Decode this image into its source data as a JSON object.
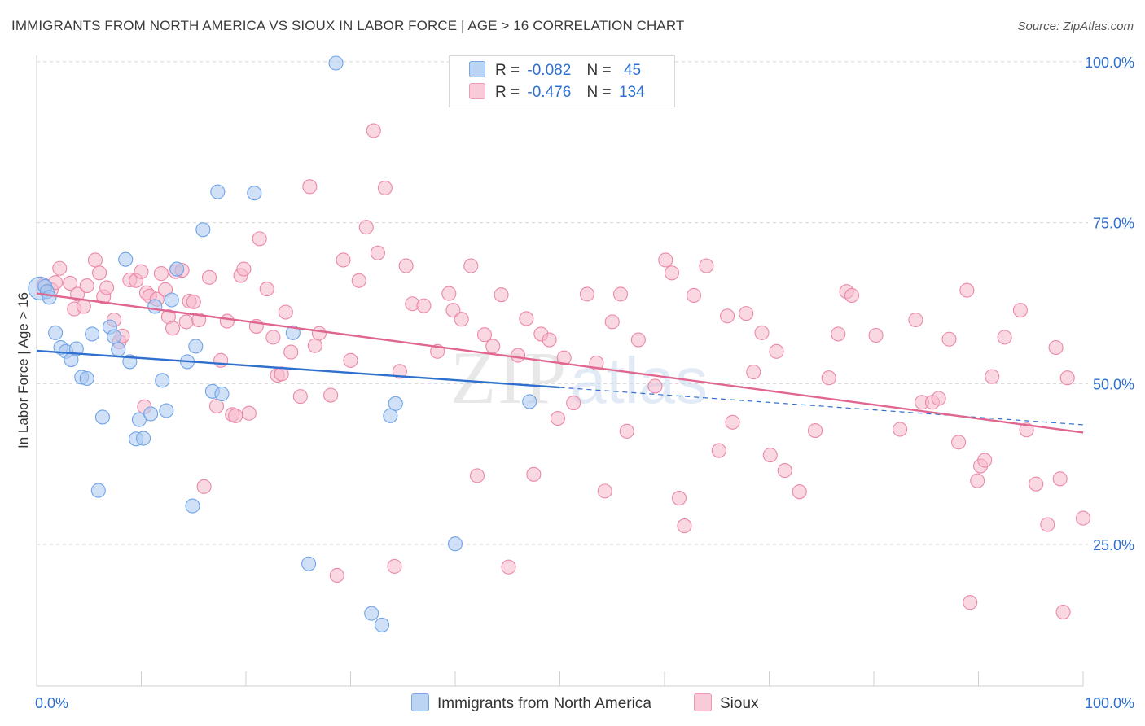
{
  "header": {
    "title": "IMMIGRANTS FROM NORTH AMERICA VS SIOUX IN LABOR FORCE | AGE > 16 CORRELATION CHART",
    "source": "Source: ZipAtlas.com"
  },
  "watermark": {
    "zip": "ZIP",
    "atlas": "atlas"
  },
  "legend": {
    "rows": [
      {
        "r_label": "R =",
        "r_value": "-0.082",
        "n_label": "N =",
        "n_value": "45",
        "color": "#aac8f0"
      },
      {
        "r_label": "R =",
        "r_value": "-0.476",
        "n_label": "N =",
        "n_value": "134",
        "color": "#f5b8cb"
      }
    ]
  },
  "bottom_legend": [
    {
      "label": "Immigrants from North America",
      "color": "#aac8f0"
    },
    {
      "label": "Sioux",
      "color": "#f5b8cb"
    }
  ],
  "chart_data": {
    "type": "scatter",
    "ylabel": "In Labor Force | Age > 16",
    "xlabel": "",
    "xlim": [
      0,
      100
    ],
    "ylim": [
      3,
      101
    ],
    "x_tick_labels": [
      {
        "value": 0,
        "label": "0.0%"
      },
      {
        "value": 100,
        "label": "100.0%"
      }
    ],
    "y_tick_labels": [
      {
        "value": 100,
        "label": "100.0%"
      },
      {
        "value": 75,
        "label": "75.0%"
      },
      {
        "value": 50,
        "label": "50.0%"
      },
      {
        "value": 25,
        "label": "25.0%"
      }
    ],
    "grid": "horizontal dashed",
    "series": [
      {
        "name": "Immigrants from North America",
        "color": "#6fa4e8",
        "fill": "#aac8f0",
        "trend": {
          "x0": 0,
          "y0": 55.1,
          "x1": 50,
          "y1": 49.4,
          "dashed_to_x": 100,
          "dashed_to_y": 43.6,
          "color": "#2f6fce"
        },
        "points": [
          [
            0.3,
            64.8
          ],
          [
            0.8,
            65.1
          ],
          [
            1.0,
            64.3
          ],
          [
            1.2,
            63.4
          ],
          [
            1.8,
            57.9
          ],
          [
            2.3,
            55.6
          ],
          [
            2.8,
            55.0
          ],
          [
            3.3,
            53.7
          ],
          [
            3.8,
            55.4
          ],
          [
            4.3,
            51.0
          ],
          [
            4.8,
            50.8
          ],
          [
            5.3,
            57.7
          ],
          [
            6.3,
            44.8
          ],
          [
            5.9,
            33.4
          ],
          [
            7.0,
            58.8
          ],
          [
            7.4,
            57.3
          ],
          [
            7.8,
            55.3
          ],
          [
            8.5,
            69.3
          ],
          [
            8.9,
            53.4
          ],
          [
            9.5,
            41.4
          ],
          [
            9.8,
            44.4
          ],
          [
            10.2,
            41.5
          ],
          [
            10.9,
            45.3
          ],
          [
            11.3,
            62.0
          ],
          [
            12.0,
            50.5
          ],
          [
            12.4,
            45.8
          ],
          [
            12.9,
            63.0
          ],
          [
            13.4,
            67.8
          ],
          [
            14.4,
            53.4
          ],
          [
            14.9,
            31.0
          ],
          [
            15.2,
            55.8
          ],
          [
            15.9,
            73.9
          ],
          [
            16.8,
            48.8
          ],
          [
            17.3,
            79.8
          ],
          [
            17.7,
            48.4
          ],
          [
            20.8,
            79.6
          ],
          [
            24.5,
            57.9
          ],
          [
            26.0,
            22.0
          ],
          [
            28.6,
            99.8
          ],
          [
            32.0,
            14.3
          ],
          [
            33.0,
            12.5
          ],
          [
            33.8,
            45.0
          ],
          [
            34.3,
            46.9
          ],
          [
            40.0,
            25.1
          ],
          [
            47.1,
            47.2
          ]
        ]
      },
      {
        "name": "Sioux",
        "color": "#eb88a8",
        "fill": "#f5b8cb",
        "trend": {
          "x0": 0,
          "y0": 64.0,
          "x1": 100,
          "y1": 42.4,
          "color": "#e0658f"
        },
        "points": [
          [
            0.7,
            65.3
          ],
          [
            1.4,
            64.6
          ],
          [
            1.8,
            65.7
          ],
          [
            2.2,
            67.9
          ],
          [
            3.2,
            65.6
          ],
          [
            3.6,
            61.6
          ],
          [
            3.9,
            63.9
          ],
          [
            4.5,
            62.0
          ],
          [
            4.8,
            65.2
          ],
          [
            5.6,
            69.2
          ],
          [
            6.0,
            67.2
          ],
          [
            6.4,
            63.5
          ],
          [
            6.7,
            64.9
          ],
          [
            7.4,
            59.9
          ],
          [
            7.9,
            56.5
          ],
          [
            8.2,
            57.4
          ],
          [
            8.9,
            66.1
          ],
          [
            9.5,
            66.0
          ],
          [
            10.0,
            67.4
          ],
          [
            10.5,
            64.1
          ],
          [
            10.3,
            46.4
          ],
          [
            10.8,
            63.6
          ],
          [
            11.5,
            63.1
          ],
          [
            11.9,
            67.1
          ],
          [
            12.3,
            64.6
          ],
          [
            12.6,
            60.4
          ],
          [
            13.0,
            58.6
          ],
          [
            13.3,
            67.4
          ],
          [
            13.9,
            67.6
          ],
          [
            14.3,
            59.6
          ],
          [
            14.6,
            62.8
          ],
          [
            15.0,
            62.7
          ],
          [
            15.5,
            59.9
          ],
          [
            16.0,
            34.0
          ],
          [
            16.5,
            66.5
          ],
          [
            17.2,
            46.5
          ],
          [
            17.6,
            53.6
          ],
          [
            18.2,
            59.7
          ],
          [
            18.7,
            45.2
          ],
          [
            19.0,
            45.0
          ],
          [
            19.5,
            66.8
          ],
          [
            19.8,
            67.8
          ],
          [
            20.3,
            45.4
          ],
          [
            21.0,
            58.9
          ],
          [
            21.3,
            72.5
          ],
          [
            22.0,
            64.7
          ],
          [
            22.6,
            57.2
          ],
          [
            23.0,
            51.3
          ],
          [
            23.4,
            51.5
          ],
          [
            23.8,
            61.1
          ],
          [
            24.3,
            54.9
          ],
          [
            25.2,
            48.0
          ],
          [
            26.1,
            80.6
          ],
          [
            26.6,
            55.9
          ],
          [
            27.0,
            57.8
          ],
          [
            28.1,
            48.2
          ],
          [
            28.7,
            20.2
          ],
          [
            29.3,
            69.2
          ],
          [
            30.0,
            53.6
          ],
          [
            30.8,
            66.0
          ],
          [
            31.5,
            74.3
          ],
          [
            32.2,
            89.3
          ],
          [
            32.6,
            70.3
          ],
          [
            33.3,
            80.4
          ],
          [
            34.2,
            21.6
          ],
          [
            34.7,
            51.9
          ],
          [
            35.3,
            68.3
          ],
          [
            35.9,
            62.4
          ],
          [
            37.0,
            62.1
          ],
          [
            38.3,
            55.0
          ],
          [
            39.4,
            64.0
          ],
          [
            39.8,
            61.4
          ],
          [
            40.6,
            60.0
          ],
          [
            41.5,
            68.3
          ],
          [
            42.1,
            35.7
          ],
          [
            42.8,
            57.6
          ],
          [
            43.6,
            55.8
          ],
          [
            44.4,
            63.8
          ],
          [
            45.1,
            21.5
          ],
          [
            46.0,
            54.4
          ],
          [
            46.8,
            60.1
          ],
          [
            47.5,
            35.9
          ],
          [
            48.2,
            57.7
          ],
          [
            49.0,
            56.8
          ],
          [
            49.8,
            44.6
          ],
          [
            50.4,
            54.0
          ],
          [
            51.3,
            47.0
          ],
          [
            52.6,
            63.9
          ],
          [
            53.5,
            53.2
          ],
          [
            54.3,
            33.3
          ],
          [
            55.0,
            59.6
          ],
          [
            55.8,
            63.9
          ],
          [
            56.4,
            42.6
          ],
          [
            57.5,
            56.8
          ],
          [
            59.1,
            49.6
          ],
          [
            60.1,
            69.2
          ],
          [
            60.7,
            67.2
          ],
          [
            61.4,
            32.2
          ],
          [
            61.9,
            27.9
          ],
          [
            62.8,
            63.7
          ],
          [
            64.0,
            68.3
          ],
          [
            65.2,
            39.6
          ],
          [
            66.0,
            60.5
          ],
          [
            66.5,
            44.0
          ],
          [
            67.8,
            60.9
          ],
          [
            68.5,
            51.8
          ],
          [
            69.3,
            57.9
          ],
          [
            70.1,
            38.9
          ],
          [
            70.7,
            55.0
          ],
          [
            71.5,
            36.5
          ],
          [
            72.9,
            33.2
          ],
          [
            74.4,
            42.7
          ],
          [
            75.7,
            50.9
          ],
          [
            76.6,
            57.7
          ],
          [
            77.4,
            64.3
          ],
          [
            77.9,
            63.7
          ],
          [
            80.2,
            57.5
          ],
          [
            82.5,
            42.9
          ],
          [
            84.0,
            59.9
          ],
          [
            84.6,
            47.1
          ],
          [
            85.6,
            47.1
          ],
          [
            86.2,
            47.7
          ],
          [
            87.2,
            56.9
          ],
          [
            88.1,
            40.9
          ],
          [
            88.9,
            64.5
          ],
          [
            89.2,
            16.0
          ],
          [
            89.9,
            34.9
          ],
          [
            90.2,
            37.2
          ],
          [
            90.6,
            38.1
          ],
          [
            91.3,
            51.1
          ],
          [
            92.5,
            57.2
          ],
          [
            94.0,
            61.4
          ],
          [
            94.6,
            42.8
          ],
          [
            95.5,
            34.4
          ],
          [
            96.6,
            28.1
          ],
          [
            97.4,
            55.6
          ],
          [
            97.8,
            35.2
          ],
          [
            98.1,
            14.5
          ],
          [
            98.5,
            50.9
          ],
          [
            100.0,
            29.1
          ]
        ]
      }
    ]
  }
}
